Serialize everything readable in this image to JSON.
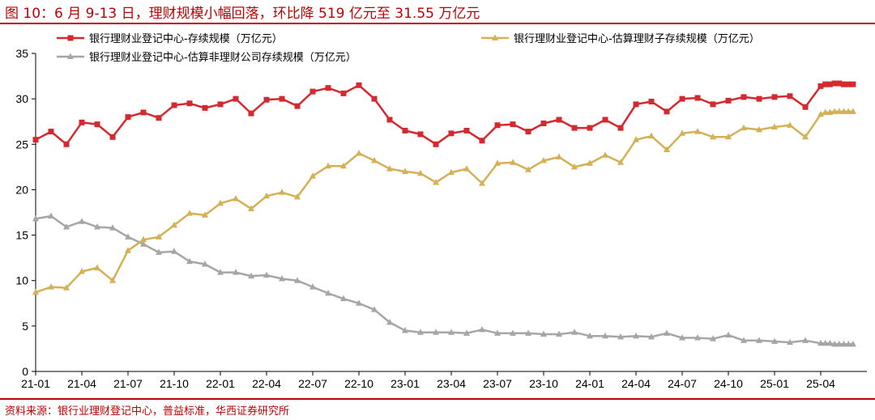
{
  "title": "图 10：6 月 9-13 日，理财规模小幅回落，环比降 519 亿元至 31.55 万亿元",
  "source": "资料来源：银行业理财登记中心，普益标准，华西证券研究所",
  "colors": {
    "title": "#c00000",
    "series1": "#d42a2f",
    "series2": "#d4b056",
    "series3": "#a6a6a6"
  },
  "chart_data": {
    "type": "line",
    "title": "图 10：6 月 9-13 日，理财规模小幅回落，环比降 519 亿元至 31.55 万亿元",
    "xlabel": "",
    "ylabel": "",
    "ylim": [
      0,
      35
    ],
    "yticks": [
      0,
      5,
      10,
      15,
      20,
      25,
      30,
      35
    ],
    "x_tick_labels": [
      "21-01",
      "21-04",
      "21-07",
      "21-10",
      "22-01",
      "22-04",
      "22-07",
      "22-10",
      "23-01",
      "23-04",
      "23-07",
      "23-10",
      "24-01",
      "24-04",
      "24-07",
      "24-10",
      "25-01",
      "25-04"
    ],
    "x_range": [
      0,
      54
    ],
    "legend_position": "top",
    "series": [
      {
        "name": "银行理财业登记中心-存续规模（万亿元）",
        "marker": "square",
        "points": [
          [
            0,
            25.5
          ],
          [
            1,
            26.4
          ],
          [
            2,
            25.0
          ],
          [
            3,
            27.4
          ],
          [
            4,
            27.2
          ],
          [
            5,
            25.8
          ],
          [
            6,
            28.0
          ],
          [
            7,
            28.5
          ],
          [
            8,
            27.9
          ],
          [
            9,
            29.3
          ],
          [
            10,
            29.5
          ],
          [
            11,
            29.0
          ],
          [
            12,
            29.4
          ],
          [
            13,
            30.0
          ],
          [
            14,
            28.4
          ],
          [
            15,
            29.9
          ],
          [
            16,
            30.0
          ],
          [
            17,
            29.2
          ],
          [
            18,
            30.8
          ],
          [
            19,
            31.2
          ],
          [
            20,
            30.6
          ],
          [
            21,
            31.5
          ],
          [
            22,
            30.0
          ],
          [
            23,
            27.7
          ],
          [
            24,
            26.5
          ],
          [
            25,
            26.1
          ],
          [
            26,
            25.0
          ],
          [
            27,
            26.2
          ],
          [
            28,
            26.5
          ],
          [
            29,
            25.4
          ],
          [
            30,
            27.1
          ],
          [
            31,
            27.2
          ],
          [
            32,
            26.4
          ],
          [
            33,
            27.3
          ],
          [
            34,
            27.7
          ],
          [
            35,
            26.8
          ],
          [
            36,
            26.8
          ],
          [
            37,
            27.7
          ],
          [
            38,
            26.8
          ],
          [
            39,
            29.4
          ],
          [
            40,
            29.7
          ],
          [
            41,
            28.6
          ],
          [
            42,
            30.0
          ],
          [
            43,
            30.1
          ],
          [
            44,
            29.4
          ],
          [
            45,
            29.8
          ],
          [
            46,
            30.2
          ],
          [
            47,
            30.0
          ],
          [
            48,
            30.2
          ],
          [
            49,
            30.3
          ],
          [
            50,
            29.1
          ],
          [
            51,
            31.4
          ],
          [
            51.3,
            31.6
          ],
          [
            51.6,
            31.6
          ],
          [
            51.9,
            31.7
          ],
          [
            52.2,
            31.7
          ],
          [
            52.5,
            31.6
          ],
          [
            52.8,
            31.6
          ],
          [
            53.1,
            31.6
          ]
        ]
      },
      {
        "name": "银行理财业登记中心-估算理财子存续规模（万亿元）",
        "marker": "triangle",
        "points": [
          [
            0,
            8.7
          ],
          [
            1,
            9.3
          ],
          [
            2,
            9.2
          ],
          [
            3,
            11.0
          ],
          [
            4,
            11.4
          ],
          [
            5,
            10.0
          ],
          [
            6,
            13.3
          ],
          [
            7,
            14.5
          ],
          [
            8,
            14.8
          ],
          [
            9,
            16.1
          ],
          [
            10,
            17.4
          ],
          [
            11,
            17.2
          ],
          [
            12,
            18.5
          ],
          [
            13,
            19.0
          ],
          [
            14,
            17.9
          ],
          [
            15,
            19.3
          ],
          [
            16,
            19.7
          ],
          [
            17,
            19.2
          ],
          [
            18,
            21.5
          ],
          [
            19,
            22.6
          ],
          [
            20,
            22.6
          ],
          [
            21,
            24.0
          ],
          [
            22,
            23.2
          ],
          [
            23,
            22.3
          ],
          [
            24,
            22.0
          ],
          [
            25,
            21.8
          ],
          [
            26,
            20.8
          ],
          [
            27,
            21.9
          ],
          [
            28,
            22.3
          ],
          [
            29,
            20.7
          ],
          [
            30,
            22.9
          ],
          [
            31,
            23.0
          ],
          [
            32,
            22.2
          ],
          [
            33,
            23.2
          ],
          [
            34,
            23.6
          ],
          [
            35,
            22.5
          ],
          [
            36,
            22.9
          ],
          [
            37,
            23.8
          ],
          [
            38,
            23.0
          ],
          [
            39,
            25.5
          ],
          [
            40,
            25.9
          ],
          [
            41,
            24.4
          ],
          [
            42,
            26.2
          ],
          [
            43,
            26.4
          ],
          [
            44,
            25.8
          ],
          [
            45,
            25.8
          ],
          [
            46,
            26.8
          ],
          [
            47,
            26.6
          ],
          [
            48,
            26.9
          ],
          [
            49,
            27.1
          ],
          [
            50,
            25.8
          ],
          [
            51,
            28.3
          ],
          [
            51.3,
            28.5
          ],
          [
            51.6,
            28.5
          ],
          [
            51.9,
            28.6
          ],
          [
            52.2,
            28.6
          ],
          [
            52.5,
            28.6
          ],
          [
            52.8,
            28.6
          ],
          [
            53.1,
            28.6
          ]
        ]
      },
      {
        "name": "银行理财业登记中心-估算非理财公司存续规模（万亿元）",
        "marker": "triangle",
        "points": [
          [
            0,
            16.8
          ],
          [
            1,
            17.1
          ],
          [
            2,
            15.9
          ],
          [
            3,
            16.5
          ],
          [
            4,
            15.9
          ],
          [
            5,
            15.8
          ],
          [
            6,
            14.8
          ],
          [
            7,
            14.0
          ],
          [
            8,
            13.1
          ],
          [
            9,
            13.2
          ],
          [
            10,
            12.1
          ],
          [
            11,
            11.8
          ],
          [
            12,
            10.9
          ],
          [
            13,
            10.9
          ],
          [
            14,
            10.5
          ],
          [
            15,
            10.6
          ],
          [
            16,
            10.2
          ],
          [
            17,
            10.0
          ],
          [
            18,
            9.3
          ],
          [
            19,
            8.6
          ],
          [
            20,
            8.0
          ],
          [
            21,
            7.5
          ],
          [
            22,
            6.8
          ],
          [
            23,
            5.4
          ],
          [
            24,
            4.5
          ],
          [
            25,
            4.3
          ],
          [
            26,
            4.3
          ],
          [
            27,
            4.3
          ],
          [
            28,
            4.2
          ],
          [
            29,
            4.6
          ],
          [
            30,
            4.2
          ],
          [
            31,
            4.2
          ],
          [
            32,
            4.2
          ],
          [
            33,
            4.1
          ],
          [
            34,
            4.1
          ],
          [
            35,
            4.3
          ],
          [
            36,
            3.9
          ],
          [
            37,
            3.9
          ],
          [
            38,
            3.8
          ],
          [
            39,
            3.9
          ],
          [
            40,
            3.8
          ],
          [
            41,
            4.2
          ],
          [
            42,
            3.7
          ],
          [
            43,
            3.7
          ],
          [
            44,
            3.6
          ],
          [
            45,
            4.0
          ],
          [
            46,
            3.4
          ],
          [
            47,
            3.4
          ],
          [
            48,
            3.3
          ],
          [
            49,
            3.2
          ],
          [
            50,
            3.4
          ],
          [
            51,
            3.1
          ],
          [
            51.3,
            3.1
          ],
          [
            51.6,
            3.1
          ],
          [
            51.9,
            3.0
          ],
          [
            52.2,
            3.0
          ],
          [
            52.5,
            3.0
          ],
          [
            52.8,
            3.0
          ],
          [
            53.1,
            3.0
          ]
        ]
      }
    ]
  }
}
